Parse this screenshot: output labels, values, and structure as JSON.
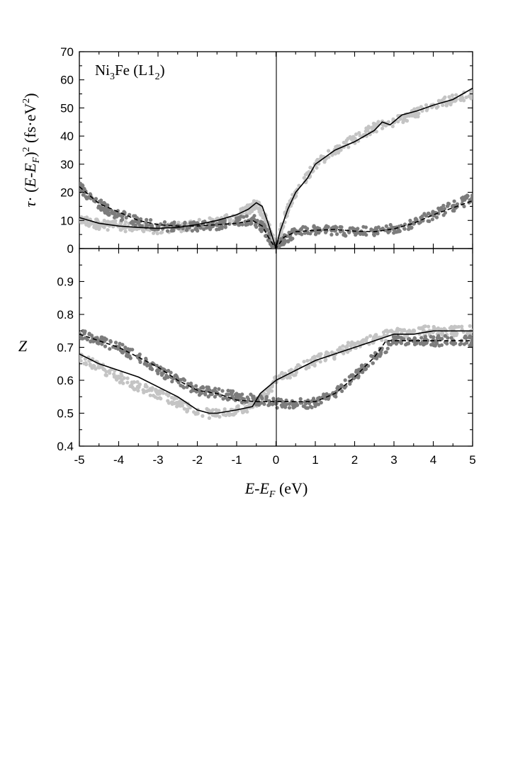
{
  "chart_data": [
    {
      "type": "scatter",
      "panel": "top",
      "annotation": {
        "formula": "Ni",
        "sub1": "3",
        "mid": "Fe (L1",
        "sub2": "2",
        "end": ")"
      },
      "ylabel": {
        "tau": "τ",
        "dot": "· (",
        "e1": "E",
        "minus": "-",
        "e2": "E",
        "subF": "F",
        "close": ")",
        "sup2": "2",
        "units": " (fs·eV",
        "sup2b": "2",
        "end": ")"
      },
      "xlim": [
        -5,
        5
      ],
      "ylim": [
        0,
        70
      ],
      "y_ticks": [
        "0",
        "10",
        "20",
        "30",
        "40",
        "50",
        "60",
        "70"
      ],
      "series": [
        {
          "kind": "points",
          "color": "#c4c4c4",
          "points": [
            [
              -5,
              10
            ],
            [
              -4.7,
              9
            ],
            [
              -4.4,
              8.5
            ],
            [
              -4,
              8
            ],
            [
              -3.5,
              7.5
            ],
            [
              -3,
              7
            ],
            [
              -2.5,
              7.5
            ],
            [
              -2,
              8.5
            ],
            [
              -1.5,
              9.5
            ],
            [
              -1,
              11.5
            ],
            [
              -0.7,
              14
            ],
            [
              -0.5,
              16
            ],
            [
              -0.3,
              12
            ],
            [
              -0.15,
              6
            ],
            [
              0,
              0
            ],
            [
              0.15,
              8
            ],
            [
              0.3,
              14
            ],
            [
              0.5,
              20
            ],
            [
              1,
              30
            ],
            [
              1.5,
              35
            ],
            [
              2,
              39
            ],
            [
              2.5,
              43
            ],
            [
              3,
              45
            ],
            [
              3.5,
              48
            ],
            [
              4,
              51
            ],
            [
              4.5,
              53
            ],
            [
              5,
              55
            ]
          ]
        },
        {
          "kind": "points",
          "color": "#7c7c7c",
          "points": [
            [
              -5,
              22
            ],
            [
              -4.7,
              18
            ],
            [
              -4.3,
              14
            ],
            [
              -4,
              12
            ],
            [
              -3.5,
              9.5
            ],
            [
              -3,
              8
            ],
            [
              -2.5,
              8
            ],
            [
              -2,
              8
            ],
            [
              -1.5,
              8.5
            ],
            [
              -1,
              9.5
            ],
            [
              -0.6,
              10.5
            ],
            [
              -0.3,
              7
            ],
            [
              0,
              0
            ],
            [
              0.2,
              3
            ],
            [
              0.5,
              6
            ],
            [
              1,
              6.5
            ],
            [
              1.5,
              6.5
            ],
            [
              2,
              6
            ],
            [
              2.5,
              6
            ],
            [
              3,
              7
            ],
            [
              3.5,
              9
            ],
            [
              4,
              12
            ],
            [
              4.5,
              15
            ],
            [
              5,
              18
            ]
          ]
        },
        {
          "kind": "solid",
          "color": "#000000",
          "points": [
            [
              -5,
              11
            ],
            [
              -4.5,
              9
            ],
            [
              -4,
              8
            ],
            [
              -3.5,
              7.5
            ],
            [
              -3,
              7.2
            ],
            [
              -2.5,
              7.5
            ],
            [
              -2,
              8.5
            ],
            [
              -1.5,
              10
            ],
            [
              -1,
              12
            ],
            [
              -0.7,
              14
            ],
            [
              -0.5,
              16.3
            ],
            [
              -0.35,
              15
            ],
            [
              -0.2,
              9
            ],
            [
              0,
              0
            ],
            [
              0.1,
              6
            ],
            [
              0.3,
              14
            ],
            [
              0.5,
              20
            ],
            [
              0.8,
              25
            ],
            [
              1,
              30
            ],
            [
              1.5,
              35
            ],
            [
              2,
              38
            ],
            [
              2.5,
              42
            ],
            [
              2.7,
              45
            ],
            [
              2.9,
              44
            ],
            [
              3.2,
              47.5
            ],
            [
              3.6,
              49
            ],
            [
              4,
              51
            ],
            [
              4.5,
              53
            ],
            [
              5,
              57
            ]
          ]
        },
        {
          "kind": "dashed",
          "color": "#000000",
          "points": [
            [
              -5,
              22
            ],
            [
              -4.5,
              16
            ],
            [
              -4,
              13
            ],
            [
              -3.5,
              10
            ],
            [
              -3,
              8.5
            ],
            [
              -2.5,
              8
            ],
            [
              -2,
              8
            ],
            [
              -1.5,
              8.5
            ],
            [
              -1,
              9
            ],
            [
              -0.6,
              10
            ],
            [
              -0.35,
              8
            ],
            [
              -0.15,
              3
            ],
            [
              0,
              0
            ],
            [
              0.2,
              4
            ],
            [
              0.5,
              6
            ],
            [
              1,
              6.5
            ],
            [
              1.5,
              6.8
            ],
            [
              2,
              6.2
            ],
            [
              2.5,
              6
            ],
            [
              3,
              7
            ],
            [
              3.5,
              9
            ],
            [
              4,
              12
            ],
            [
              4.5,
              14.5
            ],
            [
              5,
              17
            ]
          ]
        }
      ]
    },
    {
      "type": "scatter",
      "panel": "bottom",
      "xlabel": {
        "e1": "E",
        "minus": "-",
        "e2": "E",
        "subF": "F",
        "units": " (eV)"
      },
      "ylabel": "Z",
      "xlim": [
        -5,
        5
      ],
      "ylim": [
        0.4,
        1.0
      ],
      "y_ticks": [
        "0.4",
        "0.5",
        "0.6",
        "0.7",
        "0.8",
        "0.9"
      ],
      "x_ticks": [
        "-5",
        "-4",
        "-3",
        "-2",
        "-1",
        "0",
        "1",
        "2",
        "3",
        "4",
        "5"
      ],
      "series": [
        {
          "kind": "points",
          "color": "#c4c4c4",
          "points": [
            [
              -5,
              0.67
            ],
            [
              -4.5,
              0.64
            ],
            [
              -4,
              0.61
            ],
            [
              -3.5,
              0.58
            ],
            [
              -3,
              0.56
            ],
            [
              -2.5,
              0.53
            ],
            [
              -2,
              0.5
            ],
            [
              -1.5,
              0.5
            ],
            [
              -1,
              0.51
            ],
            [
              -0.6,
              0.52
            ],
            [
              -0.3,
              0.55
            ],
            [
              0,
              0.6
            ],
            [
              0.5,
              0.63
            ],
            [
              1,
              0.66
            ],
            [
              1.5,
              0.68
            ],
            [
              2,
              0.71
            ],
            [
              2.5,
              0.73
            ],
            [
              3,
              0.74
            ],
            [
              3.5,
              0.75
            ],
            [
              4,
              0.75
            ],
            [
              4.5,
              0.75
            ],
            [
              5,
              0.75
            ]
          ]
        },
        {
          "kind": "points",
          "color": "#7c7c7c",
          "points": [
            [
              -5,
              0.74
            ],
            [
              -4.5,
              0.72
            ],
            [
              -4,
              0.7
            ],
            [
              -3.5,
              0.67
            ],
            [
              -3,
              0.63
            ],
            [
              -2.5,
              0.6
            ],
            [
              -2,
              0.57
            ],
            [
              -1.5,
              0.56
            ],
            [
              -1,
              0.55
            ],
            [
              -0.5,
              0.54
            ],
            [
              0,
              0.53
            ],
            [
              0.5,
              0.53
            ],
            [
              1,
              0.53
            ],
            [
              1.5,
              0.56
            ],
            [
              2,
              0.61
            ],
            [
              2.5,
              0.67
            ],
            [
              3,
              0.72
            ],
            [
              3.5,
              0.72
            ],
            [
              4,
              0.72
            ],
            [
              4.5,
              0.72
            ],
            [
              5,
              0.72
            ]
          ]
        },
        {
          "kind": "solid",
          "color": "#000000",
          "points": [
            [
              -5,
              0.68
            ],
            [
              -4.5,
              0.65
            ],
            [
              -4,
              0.63
            ],
            [
              -3.5,
              0.61
            ],
            [
              -3,
              0.58
            ],
            [
              -2.5,
              0.55
            ],
            [
              -2,
              0.51
            ],
            [
              -1.7,
              0.5
            ],
            [
              -1.5,
              0.5
            ],
            [
              -1,
              0.51
            ],
            [
              -0.6,
              0.52
            ],
            [
              -0.4,
              0.56
            ],
            [
              -0.2,
              0.58
            ],
            [
              0,
              0.6
            ],
            [
              0.5,
              0.63
            ],
            [
              1,
              0.66
            ],
            [
              1.5,
              0.68
            ],
            [
              2,
              0.7
            ],
            [
              2.5,
              0.72
            ],
            [
              3,
              0.74
            ],
            [
              3.5,
              0.74
            ],
            [
              4,
              0.75
            ],
            [
              4.5,
              0.75
            ],
            [
              5,
              0.75
            ]
          ]
        },
        {
          "kind": "dashed",
          "color": "#000000",
          "points": [
            [
              -5,
              0.74
            ],
            [
              -4.5,
              0.72
            ],
            [
              -4,
              0.7
            ],
            [
              -3.5,
              0.67
            ],
            [
              -3,
              0.64
            ],
            [
              -2.5,
              0.6
            ],
            [
              -2,
              0.57
            ],
            [
              -1.5,
              0.56
            ],
            [
              -1,
              0.54
            ],
            [
              -0.5,
              0.535
            ],
            [
              0,
              0.535
            ],
            [
              0.5,
              0.535
            ],
            [
              1,
              0.535
            ],
            [
              1.5,
              0.56
            ],
            [
              2,
              0.61
            ],
            [
              2.5,
              0.67
            ],
            [
              2.8,
              0.72
            ],
            [
              3.5,
              0.72
            ],
            [
              4,
              0.72
            ],
            [
              4.5,
              0.72
            ],
            [
              5,
              0.72
            ]
          ]
        }
      ]
    }
  ]
}
